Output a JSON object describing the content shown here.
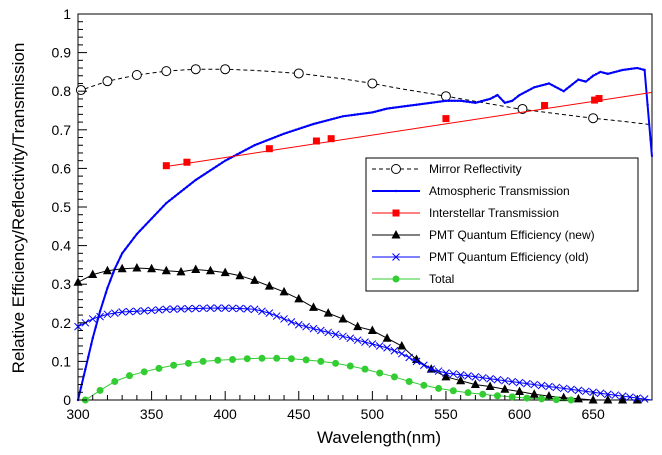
{
  "chart_data": {
    "type": "line",
    "xlabel": "Wavelength(nm)",
    "ylabel": "Relative Efficiency/Reflectivity/Transmission",
    "xlim": [
      300,
      690
    ],
    "ylim": [
      0,
      1
    ],
    "x_ticks": [
      "300",
      "350",
      "400",
      "450",
      "500",
      "550",
      "600",
      "650"
    ],
    "y_ticks": [
      "0",
      "0.1",
      "0.2",
      "0.3",
      "0.4",
      "0.5",
      "0.6",
      "0.7",
      "0.8",
      "0.9",
      "1"
    ],
    "grid": false,
    "legend_position": "center-right",
    "series": [
      {
        "name": "Mirror Reflectivity",
        "color": "#000000",
        "line": "dashed",
        "marker": "open-circle",
        "x": [
          300,
          320,
          340,
          360,
          380,
          400,
          420,
          450,
          480,
          500,
          520,
          550,
          580,
          600,
          620,
          650,
          670,
          690
        ],
        "y": [
          0.8,
          0.826,
          0.842,
          0.852,
          0.857,
          0.857,
          0.854,
          0.846,
          0.832,
          0.82,
          0.806,
          0.787,
          0.767,
          0.754,
          0.744,
          0.73,
          0.722,
          0.713
        ],
        "marker_x": [
          302,
          320,
          340,
          360,
          380,
          400,
          450,
          500,
          550,
          602,
          650
        ],
        "marker_y": [
          0.803,
          0.826,
          0.842,
          0.852,
          0.857,
          0.857,
          0.846,
          0.82,
          0.787,
          0.754,
          0.73
        ]
      },
      {
        "name": "Atmospheric Transmission",
        "color": "#0000ff",
        "line": "solid",
        "marker": "dot",
        "x": [
          300,
          305,
          310,
          315,
          320,
          325,
          330,
          340,
          350,
          360,
          380,
          400,
          420,
          440,
          460,
          480,
          500,
          510,
          520,
          530,
          540,
          550,
          560,
          570,
          580,
          585,
          590,
          595,
          600,
          610,
          620,
          630,
          640,
          645,
          650,
          655,
          660,
          670,
          680,
          685,
          690
        ],
        "y": [
          0.0,
          0.08,
          0.16,
          0.23,
          0.29,
          0.34,
          0.38,
          0.43,
          0.47,
          0.51,
          0.57,
          0.62,
          0.66,
          0.69,
          0.715,
          0.735,
          0.745,
          0.755,
          0.76,
          0.765,
          0.77,
          0.775,
          0.775,
          0.77,
          0.78,
          0.79,
          0.77,
          0.775,
          0.79,
          0.81,
          0.82,
          0.8,
          0.83,
          0.825,
          0.84,
          0.85,
          0.845,
          0.855,
          0.86,
          0.855,
          0.63
        ]
      },
      {
        "name": "Interstellar Transmission",
        "color": "#ff0000",
        "line": "solid",
        "marker": "filled-square",
        "x": [
          360,
          690
        ],
        "y": [
          0.605,
          0.797
        ],
        "marker_x": [
          360,
          374,
          430,
          462,
          472,
          550,
          617,
          651,
          654
        ],
        "marker_y": [
          0.607,
          0.616,
          0.651,
          0.671,
          0.677,
          0.729,
          0.763,
          0.777,
          0.781
        ]
      },
      {
        "name": "PMT Quantum Efficiency (new)",
        "color": "#000000",
        "line": "solid",
        "marker": "filled-triangle",
        "x": [
          300,
          310,
          320,
          330,
          340,
          350,
          360,
          370,
          380,
          390,
          400,
          410,
          420,
          430,
          440,
          450,
          460,
          470,
          480,
          490,
          500,
          510,
          520,
          530,
          540,
          550,
          560,
          570,
          580,
          590,
          600,
          610,
          620,
          630,
          640,
          650,
          660,
          670,
          680
        ],
        "y": [
          0.305,
          0.325,
          0.335,
          0.34,
          0.342,
          0.34,
          0.335,
          0.332,
          0.338,
          0.335,
          0.33,
          0.322,
          0.31,
          0.295,
          0.28,
          0.262,
          0.24,
          0.225,
          0.21,
          0.19,
          0.18,
          0.16,
          0.14,
          0.105,
          0.08,
          0.06,
          0.05,
          0.04,
          0.035,
          0.028,
          0.022,
          0.015,
          0.01,
          0.006,
          0.003,
          0.0,
          0.0,
          0.0,
          0.0
        ]
      },
      {
        "name": "PMT Quantum Efficiency (old)",
        "color": "#0000ff",
        "line": "solid",
        "marker": "cross",
        "x": [
          300,
          310,
          320,
          330,
          340,
          350,
          360,
          370,
          380,
          390,
          400,
          410,
          420,
          430,
          440,
          450,
          460,
          470,
          480,
          490,
          500,
          510,
          520,
          530,
          540,
          550,
          560,
          570,
          580,
          590,
          600,
          610,
          620,
          630,
          640,
          650,
          660,
          670,
          680,
          690
        ],
        "y": [
          0.19,
          0.21,
          0.222,
          0.228,
          0.23,
          0.232,
          0.235,
          0.236,
          0.237,
          0.238,
          0.238,
          0.237,
          0.235,
          0.225,
          0.21,
          0.195,
          0.185,
          0.175,
          0.165,
          0.155,
          0.145,
          0.135,
          0.12,
          0.1,
          0.08,
          0.07,
          0.065,
          0.06,
          0.055,
          0.05,
          0.045,
          0.04,
          0.035,
          0.03,
          0.025,
          0.02,
          0.015,
          0.01,
          0.005,
          0.0
        ]
      },
      {
        "name": "Total",
        "color": "#33cc33",
        "line": "solid",
        "marker": "filled-circle",
        "x": [
          305,
          315,
          325,
          335,
          345,
          355,
          365,
          375,
          385,
          395,
          405,
          415,
          425,
          435,
          445,
          455,
          465,
          475,
          485,
          495,
          505,
          515,
          525,
          535,
          545,
          555,
          565,
          575,
          585,
          595,
          605,
          615,
          625,
          635
        ],
        "y": [
          0.0,
          0.025,
          0.048,
          0.063,
          0.073,
          0.082,
          0.09,
          0.095,
          0.1,
          0.103,
          0.105,
          0.107,
          0.108,
          0.108,
          0.107,
          0.104,
          0.1,
          0.095,
          0.088,
          0.08,
          0.07,
          0.06,
          0.048,
          0.038,
          0.03,
          0.024,
          0.019,
          0.015,
          0.011,
          0.008,
          0.005,
          0.003,
          0.001,
          0.0
        ]
      }
    ]
  }
}
